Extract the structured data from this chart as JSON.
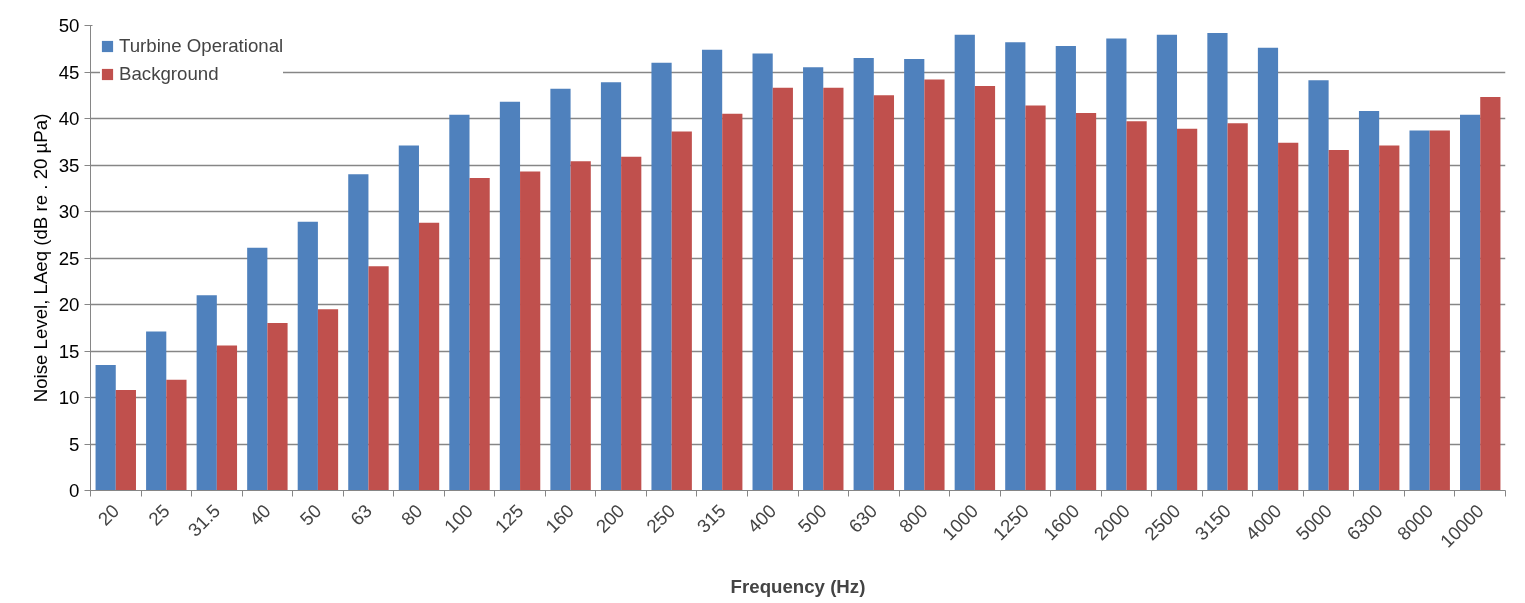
{
  "chart_data": {
    "type": "bar",
    "xlabel": "Frequency (Hz)",
    "ylabel": "Noise Level, LAeq (dB re . 20 µPa)",
    "categories": [
      "20",
      "25",
      "31.5",
      "40",
      "50",
      "63",
      "80",
      "100",
      "125",
      "160",
      "200",
      "250",
      "315",
      "400",
      "500",
      "630",
      "800",
      "1000",
      "1250",
      "1600",
      "2000",
      "2500",
      "3150",
      "4000",
      "5000",
      "6300",
      "8000",
      "10000"
    ],
    "series": [
      {
        "name": "Turbine Operational",
        "color": "#4f81bd",
        "values": [
          13.5,
          17.1,
          21,
          26.1,
          28.9,
          34,
          37.1,
          40.4,
          41.8,
          43.2,
          43.9,
          46,
          47.4,
          47,
          45.5,
          46.5,
          46.4,
          49,
          48.2,
          47.8,
          48.6,
          49,
          49.2,
          47.6,
          44.1,
          40.8,
          38.7,
          40.4
        ]
      },
      {
        "name": "Background",
        "color": "#c0504d",
        "values": [
          10.8,
          11.9,
          15.6,
          18,
          19.5,
          24.1,
          28.8,
          33.6,
          34.3,
          35.4,
          35.9,
          38.6,
          40.5,
          43.3,
          43.3,
          42.5,
          44.2,
          43.5,
          41.4,
          40.6,
          39.7,
          38.9,
          39.5,
          37.4,
          36.6,
          37.1,
          38.7,
          42.3
        ]
      }
    ],
    "ylim": [
      0,
      50
    ],
    "yticks": [
      0,
      5,
      10,
      15,
      20,
      25,
      30,
      35,
      40,
      45,
      50
    ],
    "grid": "y",
    "legend": "top left"
  }
}
